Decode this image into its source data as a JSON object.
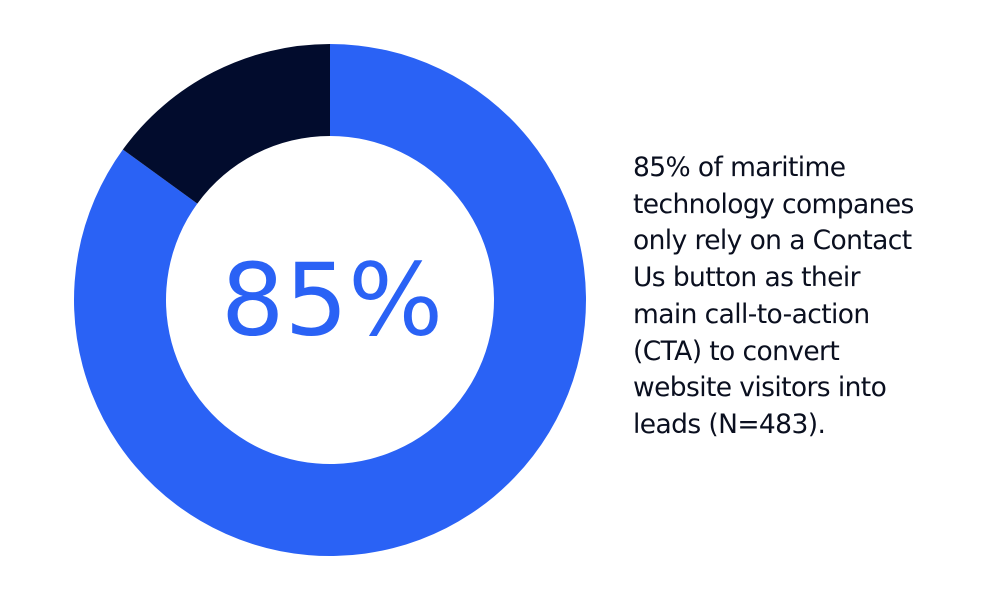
{
  "colors": {
    "primary": "#2a62f5",
    "secondary": "#020c2d",
    "background": "#ffffff"
  },
  "chart_data": {
    "type": "pie",
    "style": "donut",
    "slices": [
      {
        "value": 85,
        "color": "#2a62f5"
      },
      {
        "value": 15,
        "color": "#020c2d"
      }
    ],
    "center_label": "85%"
  },
  "caption_lines": [
    "85% of maritime",
    "technology companes",
    "only rely on a Contact",
    "Us button as their",
    "main call-to-action",
    "(CTA) to convert",
    "website visitors into",
    "leads (N=483)."
  ]
}
